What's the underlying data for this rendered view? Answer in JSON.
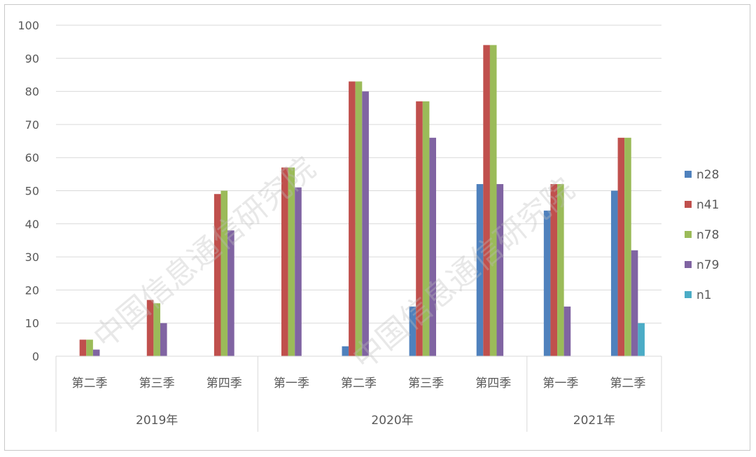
{
  "chart_data": {
    "type": "bar",
    "ylim": [
      0,
      100
    ],
    "yticks": [
      0,
      10,
      20,
      30,
      40,
      50,
      60,
      70,
      80,
      90,
      100
    ],
    "grid": true,
    "legend_position": "right",
    "categories": [
      "第二季",
      "第三季",
      "第四季",
      "第一季",
      "第二季",
      "第三季",
      "第四季",
      "第一季",
      "第二季"
    ],
    "groups": [
      {
        "label": "2019年",
        "span": 3
      },
      {
        "label": "2020年",
        "span": 4
      },
      {
        "label": "2021年",
        "span": 2
      }
    ],
    "series": [
      {
        "name": "n28",
        "color": "#4f81bd",
        "values": [
          0,
          0,
          0,
          0,
          3,
          15,
          52,
          44,
          50
        ]
      },
      {
        "name": "n41",
        "color": "#c0504d",
        "values": [
          5,
          17,
          49,
          57,
          83,
          77,
          94,
          52,
          66
        ]
      },
      {
        "name": "n78",
        "color": "#9bbb59",
        "values": [
          5,
          16,
          50,
          57,
          83,
          77,
          94,
          52,
          66
        ]
      },
      {
        "name": "n79",
        "color": "#8064a2",
        "values": [
          2,
          10,
          38,
          51,
          80,
          66,
          52,
          15,
          32
        ]
      },
      {
        "name": "n1",
        "color": "#4bacc6",
        "values": [
          0,
          0,
          0,
          0,
          0,
          0,
          0,
          0,
          10
        ]
      }
    ]
  },
  "watermark": {
    "text": "中国信息通信研究院"
  }
}
